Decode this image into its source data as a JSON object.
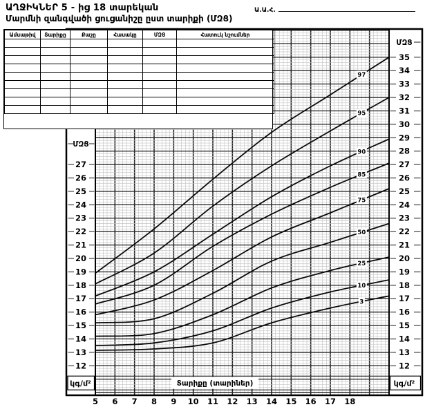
{
  "header": {
    "title_line1": "ԱՂՋԻԿՆԵՐ  5 - ից 18 տարեկան",
    "title_line2": "Մարմնի զանգվածի ցուցանիշը ըստ տարիքի (ՄԶՑ)",
    "name_field_label": "Ա.Ա.Հ."
  },
  "table": {
    "columns": [
      "Ամսաթիվ",
      "Տարիքը",
      "Քաշը",
      "Հասակը",
      "ՄԶՑ",
      "Հատուկ նշումներ"
    ],
    "empty_rows": 9
  },
  "chart_data": {
    "type": "line",
    "title": "Մարմնի զանգվածի ցուցանիշը ըստ տարիքի (ՄԶՑ)",
    "x_axis_title": "Տարիքը (տարիներ)",
    "y_axis_title": "ՄԶՑ",
    "unit_label": "կգ/մ²",
    "x_range": [
      5,
      20
    ],
    "y_range": [
      9.8,
      37.1
    ],
    "x_ticks": [
      5,
      6,
      7,
      8,
      9,
      10,
      11,
      12,
      13,
      14,
      15,
      16,
      17,
      18
    ],
    "y_ticks_right": [
      35,
      34,
      33,
      32,
      31,
      30,
      29,
      28,
      27,
      26,
      25,
      24,
      23,
      22,
      21,
      20,
      19,
      18,
      17,
      16,
      15,
      14,
      13,
      12
    ],
    "y_ticks_left": [
      27,
      26,
      25,
      24,
      23,
      22,
      21,
      20,
      19,
      18,
      17,
      16,
      15,
      14,
      13,
      12
    ],
    "grid": "on",
    "legend_position": "labels-on-curves",
    "curve_label_age": 18.6,
    "sample_ages": [
      5,
      8,
      11,
      14,
      17,
      20
    ],
    "series": [
      {
        "percentile": "97",
        "values": [
          18.9,
          22.2,
          25.9,
          29.4,
          32.2,
          35.0
        ]
      },
      {
        "percentile": "95",
        "values": [
          18.1,
          20.4,
          23.9,
          26.9,
          29.5,
          32.0
        ]
      },
      {
        "percentile": "90",
        "values": [
          17.2,
          19.0,
          21.8,
          24.6,
          26.9,
          28.9
        ]
      },
      {
        "percentile": "85",
        "values": [
          16.6,
          18.0,
          20.9,
          23.3,
          25.3,
          27.1
        ]
      },
      {
        "percentile": "75",
        "values": [
          15.8,
          16.9,
          19.1,
          21.6,
          23.4,
          25.2
        ]
      },
      {
        "percentile": "50",
        "values": [
          15.2,
          15.5,
          17.4,
          19.8,
          21.2,
          22.6
        ]
      },
      {
        "percentile": "25",
        "values": [
          14.2,
          14.4,
          15.8,
          17.8,
          19.1,
          20.1
        ]
      },
      {
        "percentile": "10",
        "values": [
          13.5,
          13.7,
          14.6,
          16.3,
          17.5,
          18.4
        ]
      },
      {
        "percentile": "3",
        "values": [
          13.15,
          13.25,
          13.7,
          15.2,
          16.3,
          17.2
        ]
      }
    ]
  }
}
